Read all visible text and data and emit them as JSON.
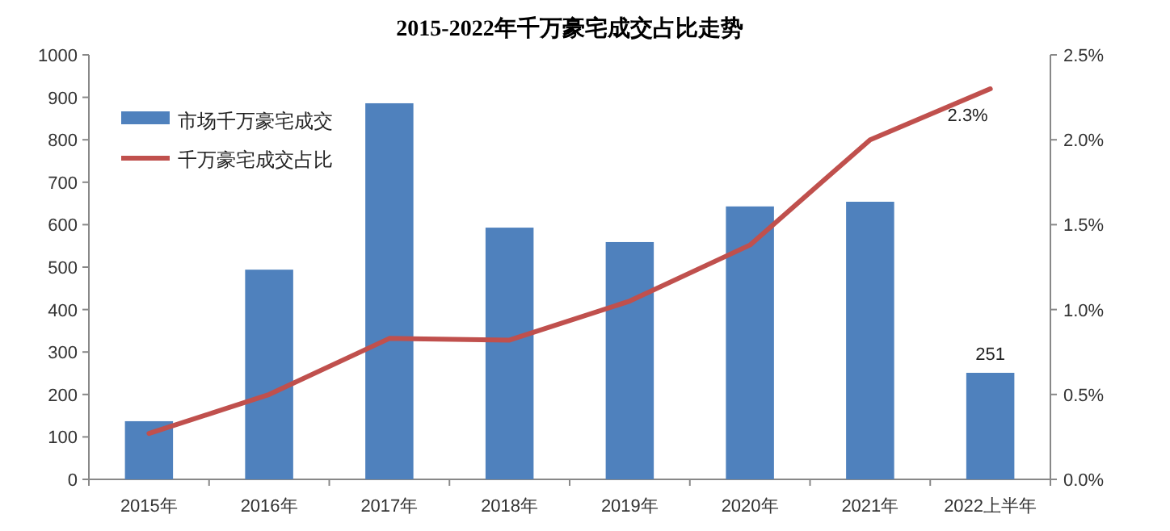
{
  "chart_data": {
    "type": "bar",
    "title": "2015-2022年千万豪宅成交占比走势",
    "categories": [
      "2015年",
      "2016年",
      "2017年",
      "2018年",
      "2019年",
      "2020年",
      "2021年",
      "2022上半年"
    ],
    "series": [
      {
        "name": "市场千万豪宅成交",
        "color": "#4f81bd",
        "values": [
          137,
          494,
          886,
          593,
          559,
          643,
          654,
          251
        ],
        "value_labels": [
          null,
          null,
          null,
          null,
          null,
          null,
          null,
          "251"
        ]
      },
      {
        "name": "千万豪宅成交占比",
        "type": "line",
        "axis": "y2",
        "color": "#c0504d",
        "values": [
          0.27,
          0.5,
          0.83,
          0.82,
          1.05,
          1.38,
          2.0,
          2.3
        ],
        "value_labels": [
          null,
          null,
          null,
          null,
          null,
          null,
          null,
          "2.3%"
        ]
      }
    ],
    "ylim": [
      0,
      1000
    ],
    "yticks": [
      0,
      100,
      200,
      300,
      400,
      500,
      600,
      700,
      800,
      900,
      1000
    ],
    "y2lim": [
      0,
      2.5
    ],
    "y2ticks": [
      {
        "value": 0,
        "label": "0.0%"
      },
      {
        "value": 0.5,
        "label": "0.5%"
      },
      {
        "value": 1,
        "label": "1.0%"
      },
      {
        "value": 1.5,
        "label": "1.5%"
      },
      {
        "value": 2,
        "label": "2.0%"
      },
      {
        "value": 2.5,
        "label": "2.5%"
      }
    ],
    "legend": "top left",
    "grid": false,
    "marker": "none",
    "line_style": "solid"
  }
}
